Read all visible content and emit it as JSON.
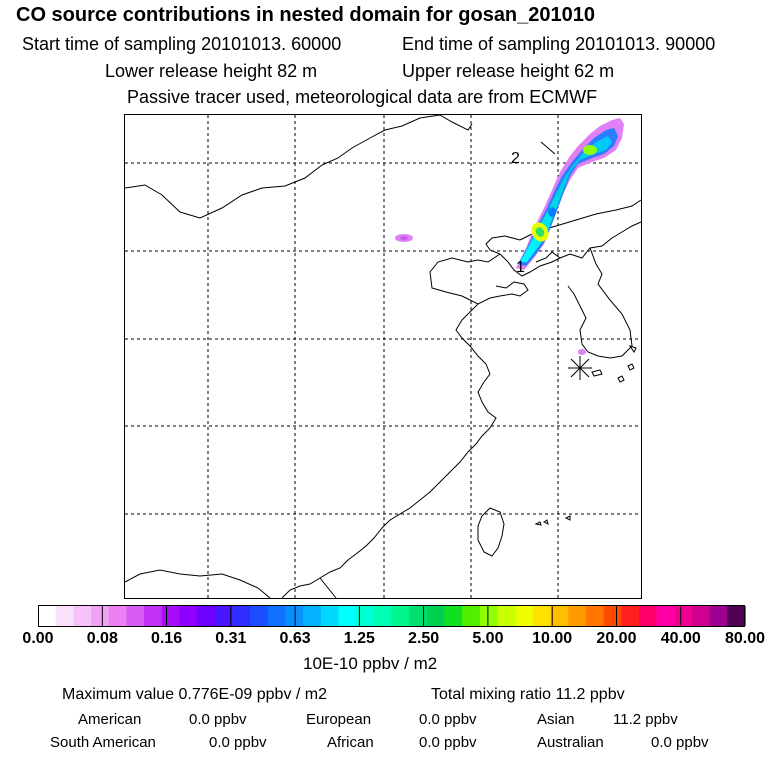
{
  "header": {
    "title": "CO  source contributions in nested domain for gosan_201010",
    "start_label": "Start time of sampling 20101013. 60000",
    "end_label": "End time of sampling 20101013. 90000",
    "lower_label": "Lower release height   82 m",
    "upper_label": "Upper release height   62 m",
    "note": "Passive tracer used, meteorological data are from ECMWF"
  },
  "map": {
    "markers": {
      "label_2": "2",
      "label_1": "1"
    }
  },
  "colorbar": {
    "colors": [
      "#ffffff",
      "#fbe0fb",
      "#f6c2f8",
      "#f0a3f4",
      "#ea80f2",
      "#d85cf2",
      "#c531f4",
      "#a70df6",
      "#8c00ff",
      "#6d00ff",
      "#4a15ff",
      "#2e2cff",
      "#1a4dff",
      "#1070ff",
      "#0990ff",
      "#05b0ff",
      "#00d8ff",
      "#00ffff",
      "#00ffd4",
      "#00ffb0",
      "#00f58c",
      "#00e070",
      "#00d050",
      "#10e020",
      "#50f000",
      "#90ff00",
      "#c8ff00",
      "#f0ff00",
      "#ffe000",
      "#ffbf00",
      "#ff9a00",
      "#ff7600",
      "#ff4a00",
      "#ff2020",
      "#ff006a",
      "#ff00a6",
      "#f00090",
      "#d0008e",
      "#a00090",
      "#500050"
    ],
    "ticks": [
      "0.00",
      "0.08",
      "0.16",
      "0.31",
      "0.63",
      "1.25",
      "2.50",
      "5.00",
      "10.00",
      "20.00",
      "40.00",
      "80.00"
    ],
    "units": "10E-10 ppbv / m2"
  },
  "stats": {
    "max_value": "Maximum value  0.776E-09 ppbv / m2",
    "total_mixing": "Total mixing ratio      11.2 ppbv",
    "american_label": "American",
    "american_value": "0.0 ppbv",
    "european_label": "European",
    "european_value": "0.0 ppbv",
    "asian_label": "Asian",
    "asian_value": "11.2 ppbv",
    "south_american_label": "South American",
    "south_american_value": "0.0 ppbv",
    "african_label": "African",
    "african_value": "0.0 ppbv",
    "australian_label": "Australian",
    "australian_value": "0.0 ppbv"
  }
}
